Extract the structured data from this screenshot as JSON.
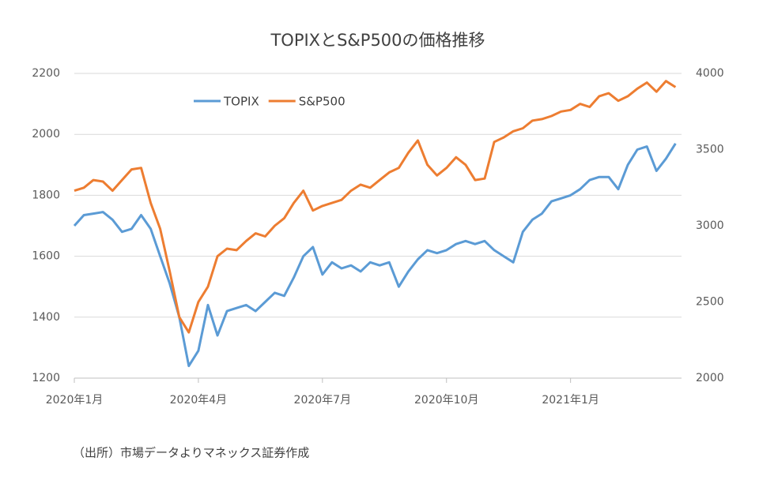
{
  "chart_data": {
    "type": "line",
    "title": "TOPIXとS&P500の価格推移",
    "note": "（出所）市場データよりマネックス証券作成",
    "categories": [
      "2020年1月",
      null,
      null,
      null,
      null,
      null,
      null,
      null,
      null,
      null,
      null,
      null,
      null,
      "2020年4月",
      null,
      null,
      null,
      null,
      null,
      null,
      null,
      null,
      null,
      null,
      null,
      null,
      "2020年7月",
      null,
      null,
      null,
      null,
      null,
      null,
      null,
      null,
      null,
      null,
      null,
      null,
      "2020年10月",
      null,
      null,
      null,
      null,
      null,
      null,
      null,
      null,
      null,
      null,
      null,
      null,
      "2021年1月",
      null,
      null,
      null,
      null,
      null,
      null,
      null,
      null,
      null,
      null,
      null
    ],
    "series": [
      {
        "name": "TOPIX",
        "color": "#5b9bd5",
        "axis": "y",
        "values": [
          1700,
          1735,
          1740,
          1745,
          1720,
          1680,
          1690,
          1735,
          1690,
          1600,
          1510,
          1400,
          1240,
          1290,
          1440,
          1340,
          1420,
          1430,
          1440,
          1420,
          1450,
          1480,
          1470,
          1530,
          1600,
          1630,
          1540,
          1580,
          1560,
          1570,
          1550,
          1580,
          1570,
          1580,
          1500,
          1550,
          1590,
          1620,
          1610,
          1620,
          1640,
          1650,
          1640,
          1650,
          1620,
          1600,
          1580,
          1680,
          1720,
          1740,
          1780,
          1790,
          1800,
          1820,
          1850,
          1860,
          1860,
          1820,
          1900,
          1950,
          1960,
          1880,
          1920,
          1970
        ]
      },
      {
        "name": "S&P500",
        "color": "#ed7d31",
        "axis": "y2",
        "values": [
          3230,
          3250,
          3300,
          3290,
          3230,
          3300,
          3370,
          3380,
          3150,
          2980,
          2700,
          2400,
          2300,
          2500,
          2600,
          2800,
          2850,
          2840,
          2900,
          2950,
          2930,
          3000,
          3050,
          3150,
          3230,
          3100,
          3130,
          3150,
          3170,
          3230,
          3270,
          3250,
          3300,
          3350,
          3380,
          3480,
          3560,
          3400,
          3330,
          3380,
          3450,
          3400,
          3300,
          3310,
          3550,
          3580,
          3620,
          3640,
          3690,
          3700,
          3720,
          3750,
          3760,
          3800,
          3780,
          3850,
          3870,
          3820,
          3850,
          3900,
          3940,
          3880,
          3950,
          3910
        ]
      }
    ],
    "ylim": [
      1200,
      2200
    ],
    "yticks": [
      1200,
      1400,
      1600,
      1800,
      2000,
      2200
    ],
    "y2lim": [
      2000,
      4000
    ],
    "y2ticks": [
      2000,
      2500,
      3000,
      3500,
      4000
    ],
    "grid": true,
    "legend": "top"
  }
}
